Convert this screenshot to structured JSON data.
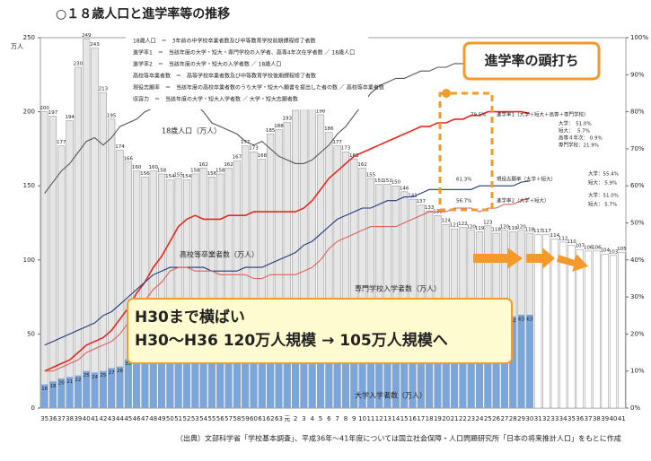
{
  "chart_data": {
    "type": "bar",
    "title": "○１８歳人口と進学率等の推移",
    "y_label": "万人",
    "categories": [
      "35",
      "36",
      "37",
      "38",
      "39",
      "40",
      "41",
      "42",
      "43",
      "44",
      "45",
      "46",
      "47",
      "48",
      "49",
      "50",
      "51",
      "52",
      "53",
      "54",
      "55",
      "56",
      "57",
      "58",
      "59",
      "60",
      "61",
      "62",
      "63",
      "元",
      "2",
      "3",
      "4",
      "5",
      "6",
      "7",
      "8",
      "9",
      "10",
      "11",
      "12",
      "13",
      "14",
      "15",
      "16",
      "17",
      "18",
      "19",
      "20",
      "21",
      "22",
      "23",
      "24",
      "25",
      "26",
      "27",
      "28",
      "29",
      "30",
      "31",
      "32",
      "33",
      "34",
      "35",
      "36",
      "37",
      "38",
      "39",
      "40",
      "41"
    ],
    "ylim": [
      0,
      250
    ],
    "yticks": [
      0,
      50,
      100,
      150,
      200,
      250
    ],
    "y2lim": [
      0,
      100
    ],
    "y2ticks": [
      {
        "value": 0,
        "label": "0%"
      },
      {
        "value": 10,
        "label": "10%"
      },
      {
        "value": 20,
        "label": "20%"
      },
      {
        "value": 30,
        "label": "30%"
      },
      {
        "value": 40,
        "label": "40%"
      },
      {
        "value": 50,
        "label": "50%"
      },
      {
        "value": 60,
        "label": "60%"
      },
      {
        "value": 70,
        "label": "70%"
      },
      {
        "value": 80,
        "label": "80%"
      },
      {
        "value": 90,
        "label": "90%"
      },
      {
        "value": 100,
        "label": "100%"
      }
    ],
    "series": [
      {
        "name": "18歳人口（万人）",
        "color": "#e6e6e6",
        "values": [
          200,
          197,
          177,
          194,
          230,
          249,
          243,
          213,
          195,
          174,
          166,
          160,
          156,
          160,
          158,
          154,
          155,
          154,
          158,
          162,
          156,
          158,
          162,
          167,
          177,
          173,
          168,
          185,
          188,
          193,
          201,
          204,
          205,
          198,
          186,
          177,
          173,
          168,
          162,
          155,
          151,
          151,
          150,
          146,
          141,
          137,
          133,
          130,
          124,
          121,
          122,
          120,
          119,
          123,
          118,
          120,
          119,
          120,
          118,
          117,
          117,
          114,
          112,
          110,
          107,
          106,
          106,
          104,
          103,
          105
        ]
      },
      {
        "name": "大学入学者数（万人）",
        "color": "#7aa6dc",
        "values": [
          16,
          18,
          20,
          21,
          22,
          25,
          24,
          25,
          27,
          28,
          33,
          35,
          38,
          39,
          41,
          42,
          42,
          42,
          41,
          41,
          41,
          41,
          41,
          41,
          42,
          41,
          41,
          42,
          41,
          48,
          49,
          50,
          51,
          54,
          56,
          56,
          57,
          59,
          59,
          59,
          60,
          60,
          60,
          60,
          60,
          60,
          60,
          61,
          61,
          61,
          61,
          61,
          61,
          61,
          61,
          62,
          62,
          63,
          63,
          null,
          null,
          null,
          null,
          null,
          null,
          null,
          null,
          null,
          null,
          null
        ]
      },
      {
        "name": "進学率1（大学＋短大＋高専＋専門学校）",
        "type": "line",
        "axis": "y2",
        "color": "#e8261e",
        "values": [
          10,
          11,
          12,
          13,
          15,
          17,
          18,
          19,
          21,
          24,
          27,
          31,
          34,
          38,
          41,
          45,
          49,
          51,
          52,
          51,
          51,
          51,
          52,
          52,
          52,
          53,
          53,
          53,
          53,
          53,
          53,
          54,
          56,
          59,
          62,
          64,
          66,
          68,
          69,
          70,
          71,
          72,
          73,
          74,
          75,
          76,
          76,
          77,
          77,
          78,
          78,
          79,
          79,
          80,
          80,
          80,
          80,
          80,
          79.5,
          null,
          null,
          null,
          null,
          null,
          null,
          null,
          null,
          null,
          null,
          null
        ]
      },
      {
        "name": "現役志願率（大学＋短大）",
        "type": "line",
        "axis": "y2",
        "color": "#1f3a7a",
        "values": [
          17,
          18,
          19,
          20,
          21,
          22,
          23,
          25,
          26,
          28,
          30,
          32,
          34,
          36,
          37,
          38,
          38,
          38,
          38,
          38,
          37,
          37,
          37,
          37,
          38,
          38,
          38,
          39,
          40,
          41,
          42,
          44,
          45,
          47,
          49,
          51,
          52,
          53,
          54,
          54,
          55,
          56,
          56,
          57,
          57,
          58,
          59,
          59,
          59,
          59,
          59,
          59,
          60,
          60,
          60,
          60,
          60,
          61,
          61.3,
          null,
          null,
          null,
          null,
          null,
          null,
          null,
          null,
          null,
          null,
          null
        ]
      },
      {
        "name": "進学率2（大学＋短大）",
        "type": "line",
        "axis": "y2",
        "color": "#e0605a",
        "values": [
          10,
          10,
          11,
          12,
          13,
          15,
          16,
          17,
          18,
          20,
          23,
          26,
          29,
          32,
          34,
          37,
          38,
          38,
          37,
          37,
          37,
          36,
          36,
          36,
          36,
          35,
          35,
          36,
          36,
          36,
          36,
          37,
          38,
          40,
          43,
          45,
          46,
          47,
          48,
          49,
          49,
          49,
          49,
          50,
          51,
          52,
          53,
          53,
          53,
          54,
          54,
          54,
          53,
          54,
          54,
          55,
          55,
          56,
          56.7,
          null,
          null,
          null,
          null,
          null,
          null,
          null,
          null,
          null,
          null,
          null
        ]
      },
      {
        "type": "line",
        "axis": "y2",
        "color": "#555555",
        "values": [
          58,
          61,
          64,
          66,
          69,
          72,
          73,
          71,
          73,
          76,
          77,
          78,
          80,
          81,
          82,
          82,
          83,
          83,
          82,
          80,
          77,
          76,
          75,
          74,
          72,
          71,
          72,
          70,
          68,
          67,
          66,
          66,
          67,
          69,
          71,
          74,
          76,
          79,
          82,
          85,
          87,
          88,
          89,
          89,
          90,
          91,
          91,
          92,
          92,
          93,
          93,
          93,
          92,
          92,
          92,
          93,
          93,
          93,
          93,
          null,
          null,
          null,
          null,
          null,
          null,
          null,
          null,
          null,
          null,
          null
        ]
      }
    ],
    "definitions": [
      "18歳人口　＝　3年前の中学校卒業者数及び中等教育学校前期課程修了者数",
      "進学率1　＝　当該年度の大学・短大・専門学校の入学者、高専4年次在学者数 ／ 18歳人口",
      "進学率2　＝　当該年度の大学・短大の入学者数 ／ 18歳人口",
      "高校等卒業者数　＝　高等学校卒業者数及び中等教育学校後期課程修了者数",
      "現役志願率　＝　当該年度の高校卒業者数のうち大学・短大へ願書を提出した者の数 ／ 高校等卒業者数",
      "収容力　＝　当該年度の大学・短大入学者数 ／ 大学・短大志願者数"
    ],
    "labels": [
      "高校等卒業者数（万人）",
      "専門学校入学者数（万人）"
    ],
    "annotations": [
      "79.5%",
      "大学：　51.0%",
      "短大：　 5.7%",
      "高専４年次： 0.9%",
      "専門学校：21.9%",
      "61.3%",
      "大学：55.4%",
      "短大： 5.9%",
      "56.7%",
      "大学：51.0%",
      "短大： 5.7%"
    ],
    "callout_top": "進学率の頭打ち",
    "callout_main": [
      "H30まで横ばい",
      "H30〜H36 120万人規模 → 105万人規模へ"
    ],
    "source": "（出典）文部科学省「学校基本調査」、平成36年〜41年度については国立社会保障・人口問題研究所「日本の将来推計人口」をもとに作成"
  }
}
